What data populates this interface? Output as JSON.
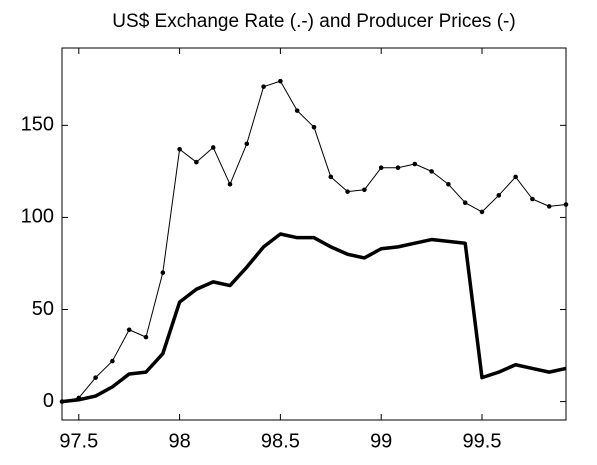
{
  "chart_data": {
    "type": "line",
    "title": "US$ Exchange Rate (.-) and Producer Prices (-)",
    "x": [
      97.4167,
      97.5,
      97.5833,
      97.6667,
      97.75,
      97.8333,
      97.9167,
      98,
      98.0833,
      98.1667,
      98.25,
      98.3333,
      98.4167,
      98.5,
      98.5833,
      98.6667,
      98.75,
      98.8333,
      98.9167,
      99,
      99.0833,
      99.1667,
      99.25,
      99.3333,
      99.4167,
      99.5,
      99.5833,
      99.6667,
      99.75,
      99.8333,
      99.9167
    ],
    "series": [
      {
        "color": "#000000",
        "line_width": 1,
        "marker": "dot",
        "values": [
          0,
          2,
          13,
          22,
          39,
          35,
          70,
          137,
          130,
          138,
          118,
          140,
          171,
          174,
          158,
          149,
          122,
          114,
          115,
          127,
          127,
          129,
          125,
          118,
          108,
          103,
          112,
          122,
          110,
          106,
          107
        ]
      },
      {
        "color": "#000000",
        "line_width": 3.5,
        "marker": "none",
        "values": [
          0,
          1,
          3,
          8,
          15,
          16,
          26,
          54,
          61,
          65,
          63,
          73,
          84,
          91,
          89,
          89,
          84,
          80,
          78,
          83,
          84,
          86,
          88,
          87,
          86,
          13,
          16,
          20,
          18,
          16,
          18
        ]
      }
    ],
    "xlim": [
      97.4167,
      99.9167
    ],
    "ylim": [
      -10,
      192
    ],
    "xticks": [
      97.5,
      98,
      98.5,
      99,
      99.5
    ],
    "yticks": [
      0,
      50,
      100,
      150
    ],
    "grid": false
  }
}
